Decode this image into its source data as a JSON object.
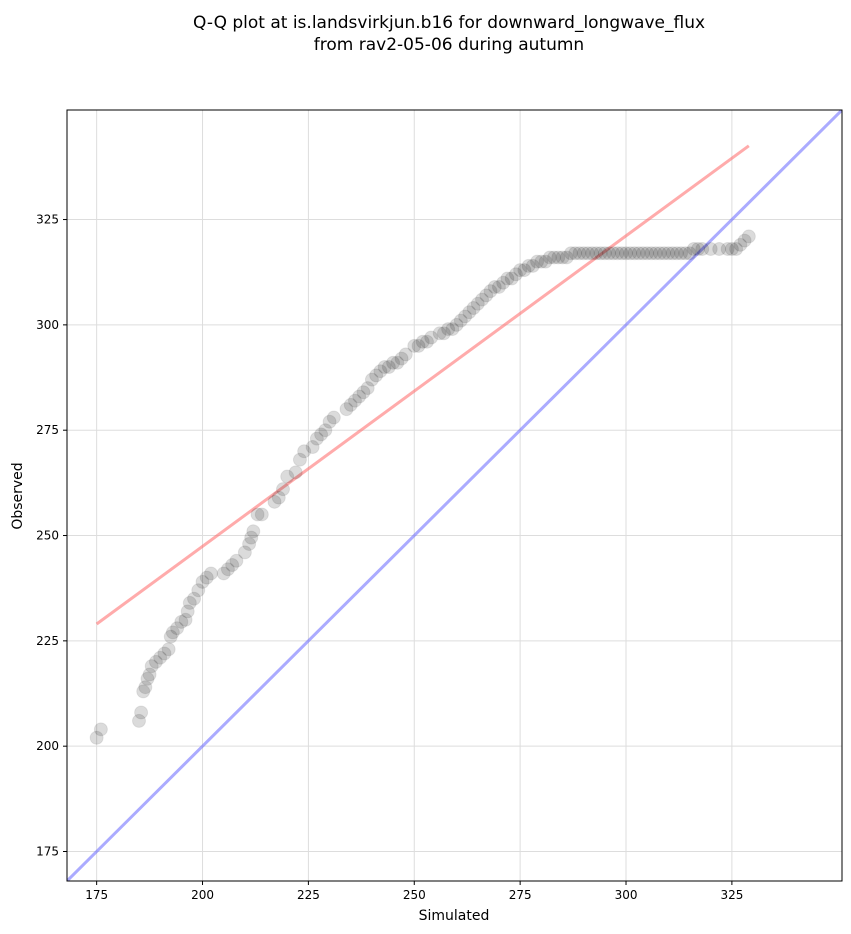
{
  "chart_data": {
    "type": "scatter",
    "title": "Q-Q plot at is.landsvirkjun.b16 for downward_longwave_flux",
    "subtitle": "from rav2-05-06 during autumn",
    "xlabel": "Simulated",
    "ylabel": "Observed",
    "xlim": [
      168,
      351
    ],
    "ylim": [
      168,
      351
    ],
    "xticks": [
      175,
      200,
      225,
      250,
      275,
      300,
      325
    ],
    "yticks": [
      175,
      200,
      225,
      250,
      275,
      300,
      325
    ],
    "grid": true,
    "colors": {
      "points": "#000000",
      "fit_line": "#ff6666",
      "identity_line": "#6666ff"
    },
    "fit_line": {
      "x": [
        175,
        329
      ],
      "y": [
        229,
        342.5
      ]
    },
    "identity_line": {
      "x": [
        168,
        351
      ],
      "y": [
        168,
        351
      ]
    },
    "points": {
      "x": [
        175,
        176,
        185,
        185.5,
        186,
        186.5,
        187,
        187.5,
        188,
        189,
        190,
        191,
        192,
        192.5,
        193,
        194,
        195,
        196,
        196.5,
        197,
        198,
        199,
        200,
        201,
        202,
        205,
        206,
        207,
        208,
        210,
        211,
        211.5,
        212,
        213,
        214,
        217,
        218,
        219,
        220,
        222,
        223,
        224,
        226,
        227,
        228,
        229,
        230,
        231,
        234,
        235,
        236,
        237,
        238,
        239,
        240,
        241,
        242,
        243,
        244,
        245,
        246,
        247,
        248,
        250,
        251,
        252,
        253,
        254,
        256,
        257,
        258,
        259,
        260,
        261,
        262,
        263,
        264,
        265,
        266,
        267,
        268,
        269,
        270,
        271,
        272,
        273,
        274,
        275,
        276,
        277,
        278,
        279,
        280,
        281,
        282,
        283,
        284,
        285,
        286,
        287,
        288,
        289,
        290,
        291,
        292,
        293,
        294,
        295,
        296,
        297,
        298,
        299,
        300,
        301,
        302,
        303,
        304,
        305,
        306,
        307,
        308,
        309,
        310,
        311,
        312,
        313,
        314,
        315,
        316,
        317,
        318,
        320,
        322,
        324,
        325,
        326,
        327,
        328,
        329
      ],
      "y": [
        202,
        204,
        206,
        208,
        213,
        214,
        216,
        217,
        219,
        220,
        221,
        222,
        223,
        226,
        227,
        228,
        229.5,
        230,
        232,
        234,
        235,
        237,
        239,
        240,
        241,
        241,
        242,
        243,
        244,
        246,
        248,
        249.5,
        251,
        255,
        255,
        258,
        259,
        261,
        264,
        265,
        268,
        270,
        271,
        273,
        274,
        275,
        277,
        278,
        280,
        281,
        282,
        283,
        284,
        285,
        287,
        288,
        289,
        290,
        290,
        291,
        291,
        292,
        293,
        295,
        295,
        296,
        296,
        297,
        298,
        298,
        299,
        299,
        300,
        301,
        302,
        303,
        304,
        305,
        306,
        307,
        308,
        309,
        309,
        310,
        311,
        311,
        312,
        313,
        313,
        314,
        314,
        315,
        315,
        315,
        316,
        316,
        316,
        316,
        316,
        317,
        317,
        317,
        317,
        317,
        317,
        317,
        317,
        317,
        317,
        317,
        317,
        317,
        317,
        317,
        317,
        317,
        317,
        317,
        317,
        317,
        317,
        317,
        317,
        317,
        317,
        317,
        317,
        317,
        318,
        318,
        318,
        318,
        318,
        318,
        318,
        318,
        319,
        320,
        321
      ]
    }
  }
}
